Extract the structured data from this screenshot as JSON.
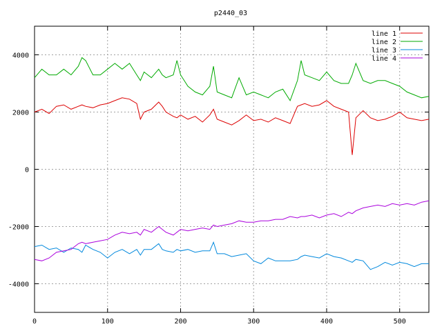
{
  "chart_data": {
    "type": "line",
    "title": "p2440_03",
    "xlabel": "",
    "ylabel": "",
    "xlim": [
      0,
      540
    ],
    "ylim": [
      -5000,
      5000
    ],
    "xticks": [
      0,
      100,
      200,
      300,
      400,
      500
    ],
    "yticks": [
      -4000,
      -2000,
      0,
      2000,
      4000
    ],
    "grid": true,
    "legend_position": "top-right",
    "x": [
      0,
      10,
      20,
      30,
      40,
      50,
      60,
      65,
      70,
      80,
      90,
      100,
      110,
      120,
      130,
      140,
      145,
      150,
      160,
      170,
      175,
      180,
      190,
      195,
      200,
      210,
      220,
      230,
      240,
      245,
      250,
      260,
      270,
      280,
      290,
      300,
      310,
      320,
      330,
      340,
      350,
      360,
      365,
      370,
      380,
      390,
      400,
      410,
      420,
      430,
      435,
      440,
      450,
      460,
      470,
      480,
      490,
      500,
      510,
      520,
      530,
      540
    ],
    "series": [
      {
        "name": "line 1",
        "color": "#dd0000",
        "values": [
          2000,
          2100,
          1950,
          2200,
          2250,
          2100,
          2200,
          2250,
          2200,
          2150,
          2250,
          2300,
          2400,
          2500,
          2450,
          2300,
          1750,
          2000,
          2100,
          2350,
          2200,
          2000,
          1850,
          1800,
          1900,
          1750,
          1850,
          1650,
          1900,
          2100,
          1750,
          1650,
          1550,
          1700,
          1900,
          1700,
          1750,
          1650,
          1800,
          1700,
          1600,
          2200,
          2250,
          2300,
          2200,
          2250,
          2400,
          2200,
          2100,
          2000,
          500,
          1800,
          2050,
          1800,
          1700,
          1750,
          1850,
          2000,
          1800,
          1750,
          1700,
          1750
        ]
      },
      {
        "name": "line 2",
        "color": "#00aa00",
        "values": [
          3200,
          3500,
          3300,
          3300,
          3500,
          3300,
          3600,
          3900,
          3800,
          3300,
          3300,
          3500,
          3700,
          3500,
          3700,
          3300,
          3100,
          3400,
          3200,
          3500,
          3300,
          3200,
          3300,
          3800,
          3300,
          2900,
          2700,
          2600,
          2900,
          3600,
          2700,
          2600,
          2500,
          3200,
          2600,
          2700,
          2600,
          2500,
          2700,
          2800,
          2400,
          3100,
          3800,
          3300,
          3200,
          3100,
          3400,
          3100,
          3000,
          3000,
          3300,
          3700,
          3100,
          3000,
          3100,
          3100,
          3000,
          2900,
          2700,
          2600,
          2500,
          2550
        ]
      },
      {
        "name": "line 3",
        "color": "#0088dd",
        "values": [
          -2700,
          -2650,
          -2800,
          -2750,
          -2900,
          -2750,
          -2800,
          -2900,
          -2650,
          -2800,
          -2900,
          -3100,
          -2900,
          -2800,
          -2950,
          -2800,
          -3000,
          -2800,
          -2800,
          -2600,
          -2800,
          -2850,
          -2900,
          -2800,
          -2850,
          -2800,
          -2900,
          -2850,
          -2850,
          -2550,
          -2950,
          -2950,
          -3050,
          -3000,
          -2950,
          -3200,
          -3300,
          -3100,
          -3200,
          -3200,
          -3200,
          -3150,
          -3050,
          -3000,
          -3050,
          -3100,
          -2950,
          -3050,
          -3100,
          -3200,
          -3250,
          -3150,
          -3200,
          -3500,
          -3400,
          -3250,
          -3350,
          -3250,
          -3300,
          -3400,
          -3300,
          -3300
        ]
      },
      {
        "name": "line 4",
        "color": "#aa00dd",
        "values": [
          -3150,
          -3200,
          -3100,
          -2900,
          -2850,
          -2800,
          -2600,
          -2550,
          -2600,
          -2550,
          -2500,
          -2450,
          -2300,
          -2200,
          -2250,
          -2200,
          -2300,
          -2100,
          -2200,
          -2000,
          -2100,
          -2200,
          -2300,
          -2200,
          -2100,
          -2150,
          -2100,
          -2050,
          -2100,
          -1950,
          -2000,
          -1950,
          -1900,
          -1800,
          -1850,
          -1850,
          -1800,
          -1800,
          -1750,
          -1750,
          -1650,
          -1700,
          -1650,
          -1650,
          -1600,
          -1700,
          -1600,
          -1550,
          -1650,
          -1500,
          -1550,
          -1450,
          -1350,
          -1300,
          -1250,
          -1300,
          -1200,
          -1250,
          -1200,
          -1250,
          -1150,
          -1100
        ]
      }
    ]
  }
}
